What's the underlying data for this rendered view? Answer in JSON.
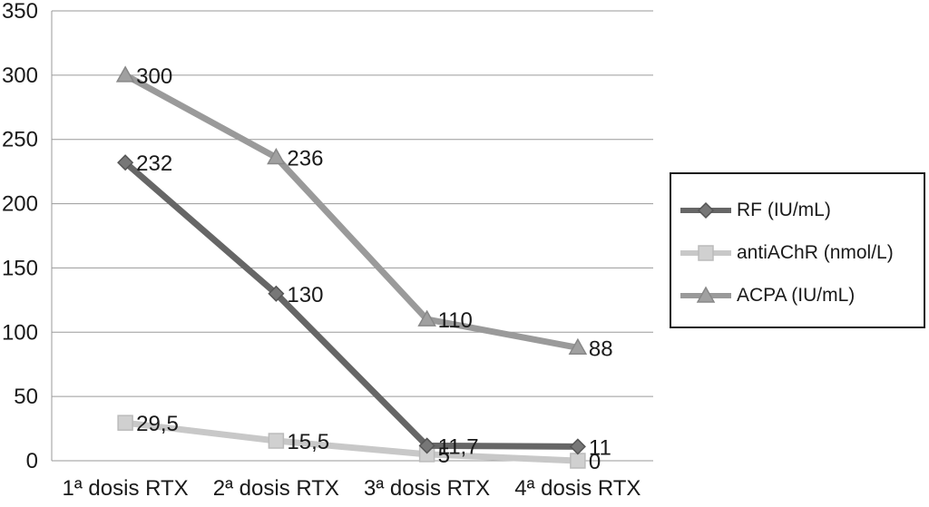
{
  "chart_data": {
    "type": "line",
    "categories": [
      "1ª dosis RTX",
      "2ª dosis RTX",
      "3ª dosis RTX",
      "4ª dosis RTX"
    ],
    "ylim": [
      0,
      350
    ],
    "yticks": [
      "0",
      "50",
      "100",
      "150",
      "200",
      "250",
      "300",
      "350"
    ],
    "grid": true,
    "legend": "right",
    "series": [
      {
        "name": "RF (IU/mL)",
        "marker": "diamond",
        "color": "#666666",
        "values": [
          232,
          130,
          11.7,
          11
        ],
        "labels": [
          "232",
          "130",
          "11,7",
          "11"
        ]
      },
      {
        "name": "antiAChR (nmol/L)",
        "marker": "square",
        "color": "#c8c8c8",
        "values": [
          29.5,
          15.5,
          5,
          0
        ],
        "labels": [
          "29,5",
          "15,5",
          "5",
          "0"
        ]
      },
      {
        "name": "ACPA (IU/mL)",
        "marker": "triangle",
        "color": "#9a9a9a",
        "values": [
          300,
          236,
          110,
          88
        ],
        "labels": [
          "300",
          "236",
          "110",
          "88"
        ]
      }
    ]
  }
}
